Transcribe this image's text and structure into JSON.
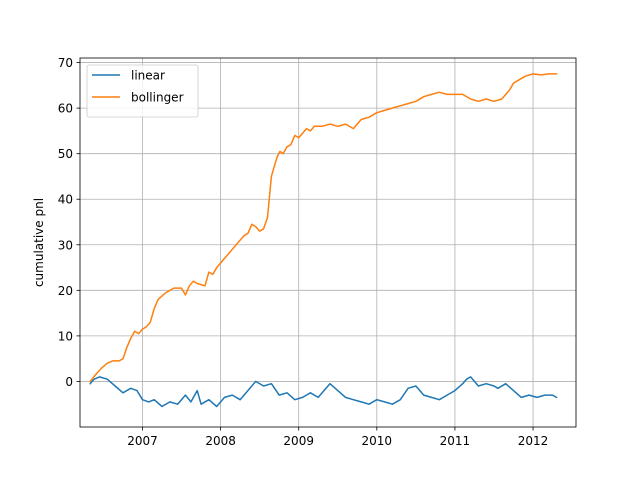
{
  "chart_data": {
    "type": "line",
    "title": "",
    "xlabel": "",
    "ylabel": "cumulative pnl",
    "xlim": [
      2006.2,
      2012.55
    ],
    "ylim": [
      -10,
      71
    ],
    "xticks": [
      2007,
      2008,
      2009,
      2010,
      2011,
      2012
    ],
    "xtick_labels": [
      "2007",
      "2008",
      "2009",
      "2010",
      "2011",
      "2012"
    ],
    "yticks": [
      0,
      10,
      20,
      30,
      40,
      50,
      60,
      70
    ],
    "ytick_labels": [
      "0",
      "10",
      "20",
      "30",
      "40",
      "50",
      "60",
      "70"
    ],
    "grid": true,
    "legend_position": "upper left",
    "series": [
      {
        "name": "linear",
        "color": "#1f77b4",
        "x": [
          2006.33,
          2006.38,
          2006.45,
          2006.55,
          2006.65,
          2006.75,
          2006.85,
          2006.93,
          2007.0,
          2007.08,
          2007.15,
          2007.25,
          2007.35,
          2007.45,
          2007.55,
          2007.62,
          2007.7,
          2007.75,
          2007.85,
          2007.95,
          2008.05,
          2008.15,
          2008.25,
          2008.35,
          2008.45,
          2008.55,
          2008.65,
          2008.75,
          2008.85,
          2008.95,
          2009.05,
          2009.15,
          2009.25,
          2009.35,
          2009.4,
          2009.5,
          2009.6,
          2009.7,
          2009.8,
          2009.9,
          2010.0,
          2010.1,
          2010.2,
          2010.3,
          2010.4,
          2010.5,
          2010.6,
          2010.7,
          2010.8,
          2010.9,
          2011.0,
          2011.1,
          2011.15,
          2011.2,
          2011.3,
          2011.4,
          2011.5,
          2011.55,
          2011.65,
          2011.75,
          2011.85,
          2011.95,
          2012.05,
          2012.15,
          2012.25,
          2012.3
        ],
        "values": [
          -0.5,
          0.5,
          1.0,
          0.5,
          -1.0,
          -2.5,
          -1.5,
          -2.0,
          -4.0,
          -4.5,
          -4.0,
          -5.5,
          -4.5,
          -5.0,
          -3.0,
          -4.5,
          -2.0,
          -5.0,
          -4.0,
          -5.5,
          -3.5,
          -3.0,
          -4.0,
          -2.0,
          0.0,
          -1.0,
          -0.5,
          -3.0,
          -2.5,
          -4.0,
          -3.5,
          -2.5,
          -3.5,
          -1.5,
          -0.5,
          -2.0,
          -3.5,
          -4.0,
          -4.5,
          -5.0,
          -4.0,
          -4.5,
          -5.0,
          -4.0,
          -1.5,
          -1.0,
          -3.0,
          -3.5,
          -4.0,
          -3.0,
          -2.0,
          -0.5,
          0.5,
          1.0,
          -1.0,
          -0.5,
          -1.0,
          -1.5,
          -0.5,
          -2.0,
          -3.5,
          -3.0,
          -3.5,
          -3.0,
          -3.0,
          -3.5
        ]
      },
      {
        "name": "bollinger",
        "color": "#ff7f0e",
        "x": [
          2006.33,
          2006.4,
          2006.48,
          2006.55,
          2006.62,
          2006.7,
          2006.75,
          2006.8,
          2006.85,
          2006.9,
          2006.95,
          2007.0,
          2007.05,
          2007.1,
          2007.15,
          2007.2,
          2007.3,
          2007.4,
          2007.5,
          2007.55,
          2007.6,
          2007.65,
          2007.7,
          2007.8,
          2007.85,
          2007.9,
          2007.95,
          2008.0,
          2008.05,
          2008.1,
          2008.15,
          2008.2,
          2008.25,
          2008.3,
          2008.35,
          2008.4,
          2008.45,
          2008.5,
          2008.55,
          2008.6,
          2008.65,
          2008.7,
          2008.73,
          2008.76,
          2008.8,
          2008.85,
          2008.9,
          2008.95,
          2009.0,
          2009.05,
          2009.1,
          2009.15,
          2009.2,
          2009.3,
          2009.4,
          2009.5,
          2009.6,
          2009.7,
          2009.8,
          2009.9,
          2010.0,
          2010.1,
          2010.2,
          2010.3,
          2010.4,
          2010.5,
          2010.6,
          2010.7,
          2010.8,
          2010.9,
          2011.0,
          2011.1,
          2011.2,
          2011.3,
          2011.4,
          2011.5,
          2011.6,
          2011.7,
          2011.75,
          2011.8,
          2011.9,
          2012.0,
          2012.1,
          2012.2,
          2012.3
        ],
        "values": [
          0.0,
          1.5,
          3.0,
          4.0,
          4.5,
          4.5,
          5.0,
          7.5,
          9.5,
          11.0,
          10.5,
          11.5,
          12.0,
          13.0,
          16.0,
          18.0,
          19.5,
          20.5,
          20.5,
          19.0,
          21.0,
          22.0,
          21.5,
          21.0,
          24.0,
          23.5,
          25.0,
          26.0,
          27.0,
          28.0,
          29.0,
          30.0,
          31.0,
          32.0,
          32.5,
          34.5,
          34.0,
          33.0,
          33.5,
          36.0,
          45.0,
          48.0,
          49.5,
          50.5,
          50.0,
          51.5,
          52.0,
          54.0,
          53.5,
          54.5,
          55.5,
          55.0,
          56.0,
          56.0,
          56.5,
          56.0,
          56.5,
          55.5,
          57.5,
          58.0,
          59.0,
          59.5,
          60.0,
          60.5,
          61.0,
          61.5,
          62.5,
          63.0,
          63.5,
          63.0,
          63.0,
          63.0,
          62.0,
          61.5,
          62.0,
          61.5,
          62.0,
          64.0,
          65.5,
          66.0,
          67.0,
          67.5,
          67.3,
          67.5,
          67.5
        ]
      }
    ]
  }
}
